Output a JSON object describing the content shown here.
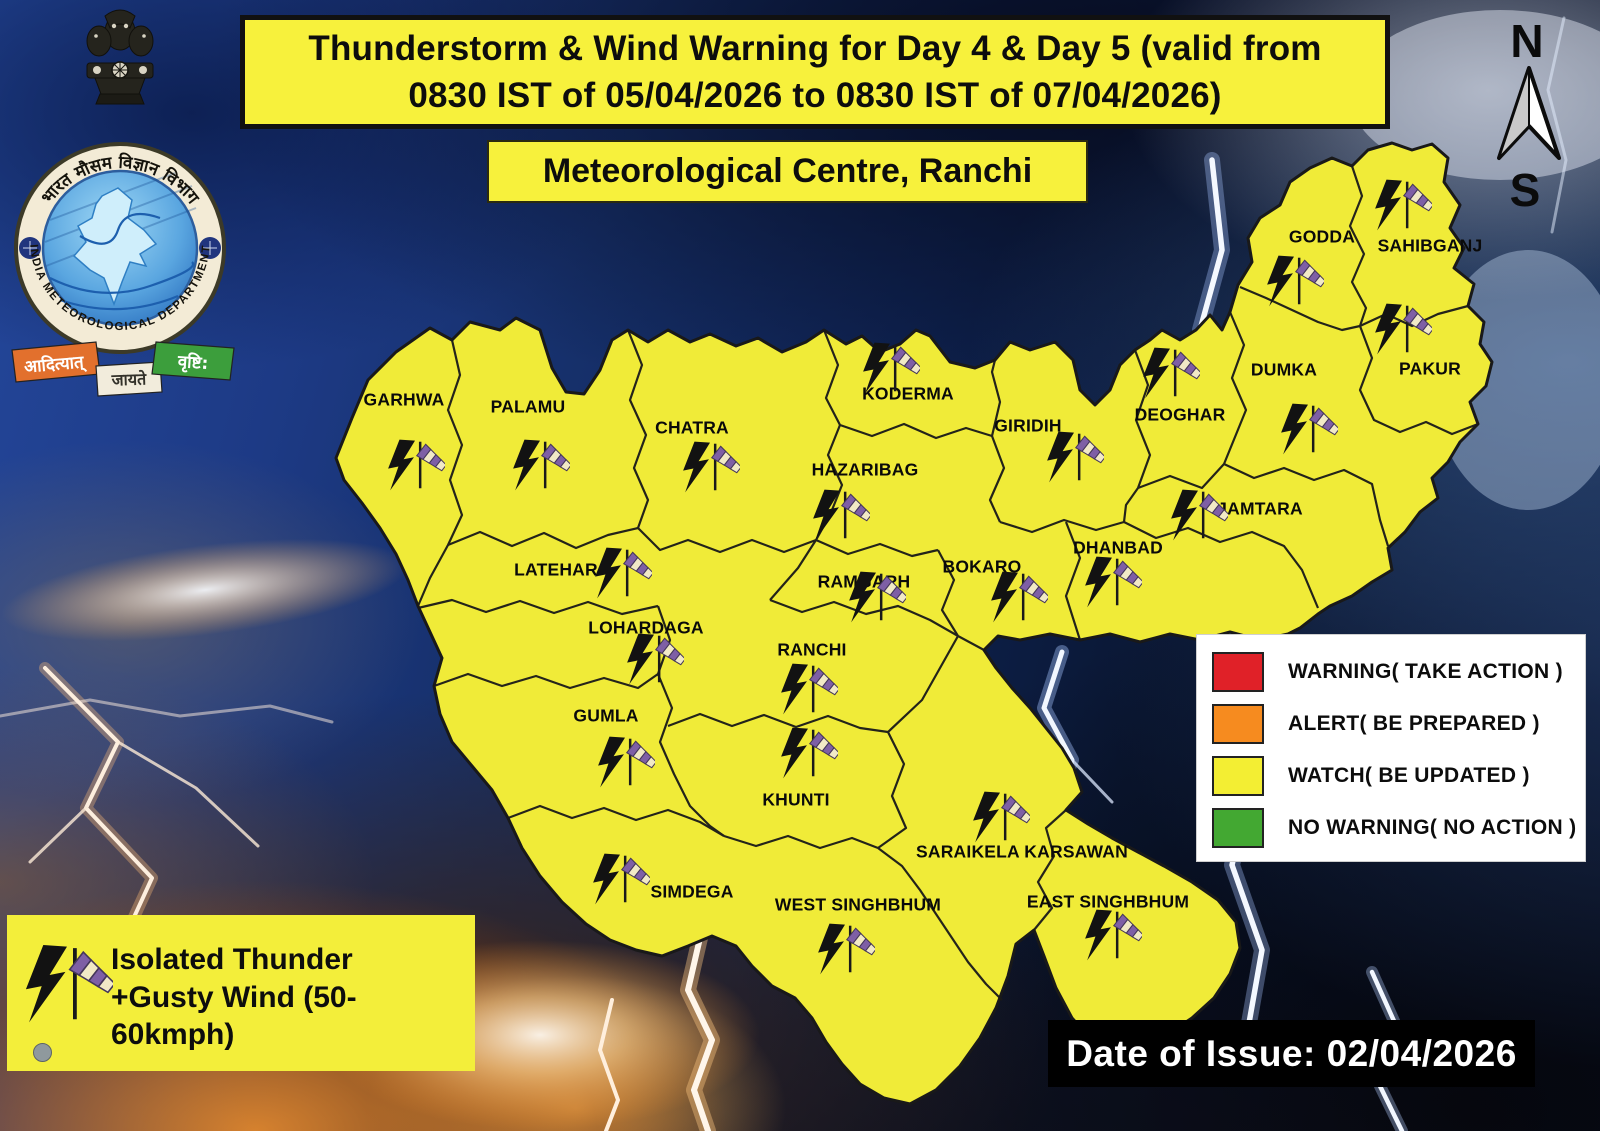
{
  "header": {
    "title": "Thunderstorm & Wind Warning for Day 4 & Day 5  (valid from\n0830 IST of  05/04/2026 to 0830 IST of 07/04/2026)",
    "subtitle": "Meteorological Centre, Ranchi"
  },
  "logo": {
    "hindi_arc": "भारत मौसम विज्ञान विभाग",
    "english_arc": "INDIA METEOROLOGICAL DEPARTMENT",
    "motto_left": "आदित्यात्",
    "motto_mid": "जायते",
    "motto_right": "वृष्टि:"
  },
  "compass": {
    "north": "N",
    "south": "S"
  },
  "map": {
    "state": "Jharkhand",
    "districts": [
      {
        "name": "GARHWA",
        "warning": "watch",
        "icon": "thunder-gustywind"
      },
      {
        "name": "PALAMU",
        "warning": "watch",
        "icon": "thunder-gustywind"
      },
      {
        "name": "CHATRA",
        "warning": "watch",
        "icon": "thunder-gustywind"
      },
      {
        "name": "KODERMA",
        "warning": "watch",
        "icon": "thunder-gustywind"
      },
      {
        "name": "HAZARIBAG",
        "warning": "watch",
        "icon": "thunder-gustywind"
      },
      {
        "name": "GIRIDIH",
        "warning": "watch",
        "icon": "thunder-gustywind"
      },
      {
        "name": "DEOGHAR",
        "warning": "watch",
        "icon": "thunder-gustywind"
      },
      {
        "name": "GODDA",
        "warning": "watch",
        "icon": "thunder-gustywind"
      },
      {
        "name": "SAHIBGANJ",
        "warning": "watch",
        "icon": "thunder-gustywind"
      },
      {
        "name": "DUMKA",
        "warning": "watch",
        "icon": "thunder-gustywind"
      },
      {
        "name": "PAKUR",
        "warning": "watch",
        "icon": "thunder-gustywind"
      },
      {
        "name": "JAMTARA",
        "warning": "watch",
        "icon": "thunder-gustywind"
      },
      {
        "name": "DHANBAD",
        "warning": "watch",
        "icon": "thunder-gustywind"
      },
      {
        "name": "BOKARO",
        "warning": "watch",
        "icon": "thunder-gustywind"
      },
      {
        "name": "RAMGARH",
        "warning": "watch",
        "icon": "thunder-gustywind"
      },
      {
        "name": "LATEHAR",
        "warning": "watch",
        "icon": "thunder-gustywind"
      },
      {
        "name": "LOHARDAGA",
        "warning": "watch",
        "icon": "thunder-gustywind"
      },
      {
        "name": "GUMLA",
        "warning": "watch",
        "icon": "thunder-gustywind"
      },
      {
        "name": "RANCHI",
        "warning": "watch",
        "icon": "thunder-gustywind"
      },
      {
        "name": "KHUNTI",
        "warning": "watch",
        "icon": "thunder-gustywind"
      },
      {
        "name": "SIMDEGA",
        "warning": "watch",
        "icon": "thunder-gustywind"
      },
      {
        "name": "WEST SINGHBHUM",
        "warning": "watch",
        "icon": "thunder-gustywind"
      },
      {
        "name": "SARAIKELA KARSAWAN",
        "warning": "watch",
        "icon": "thunder-gustywind"
      },
      {
        "name": "EAST SINGHBHUM",
        "warning": "watch",
        "icon": "thunder-gustywind"
      }
    ]
  },
  "legend": {
    "items": [
      {
        "label": "WARNING( TAKE ACTION )",
        "color": "#e02128"
      },
      {
        "label": "ALERT( BE PREPARED )",
        "color": "#f68b1f"
      },
      {
        "label": "WATCH( BE UPDATED )",
        "color": "#f3ee33"
      },
      {
        "label": "NO WARNING( NO ACTION )",
        "color": "#43a832"
      }
    ]
  },
  "note": {
    "icon": "thunder-gustywind",
    "text": "Isolated Thunder\n+Gusty Wind (50-60kmph)"
  },
  "footer": {
    "date_of_issue": "Date of Issue: 02/04/2026"
  },
  "colors": {
    "district_fill": "#f0eb38",
    "district_border": "#191919",
    "banner_bg": "#f7f13c",
    "windsock_purple": "#7e5fa5",
    "windsock_cream": "#f1e9c6",
    "bolt": "#121212"
  }
}
